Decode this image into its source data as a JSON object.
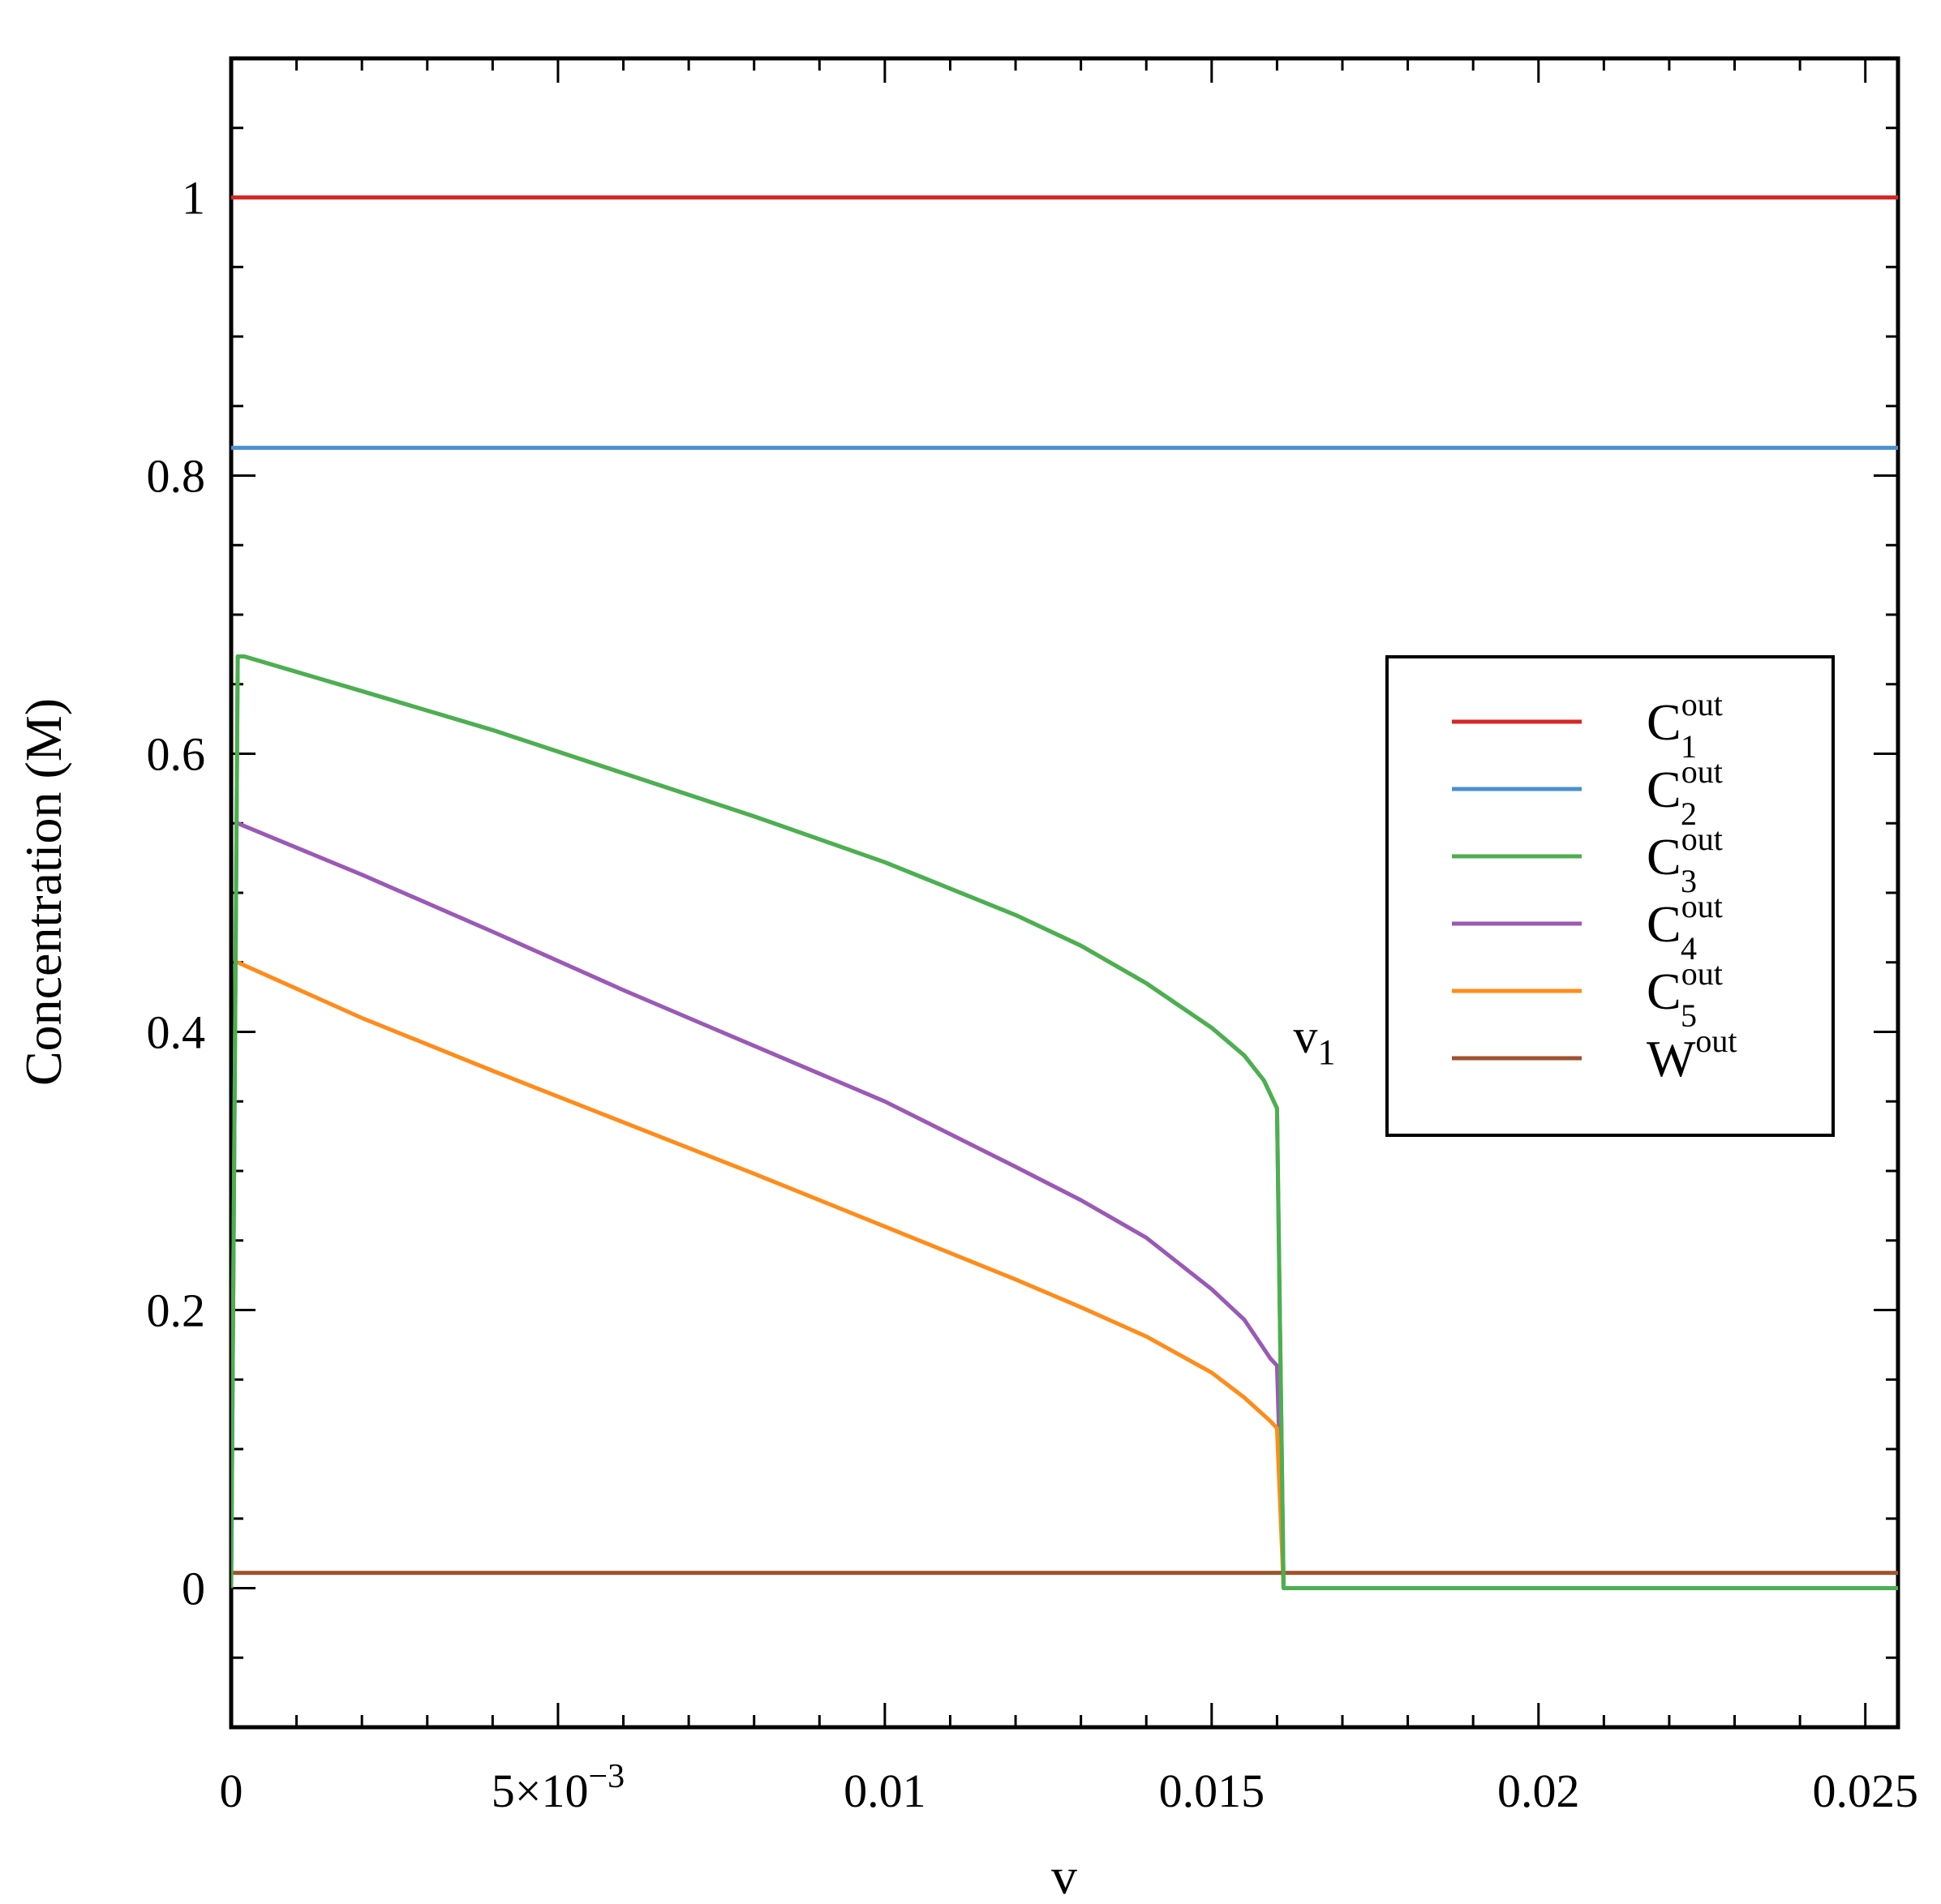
{
  "chart_data": {
    "type": "line",
    "xlabel": "v",
    "ylabel": "Concentration (M)",
    "xlim": [
      0,
      0.0255
    ],
    "ylim": [
      -0.1,
      1.1
    ],
    "grid": false,
    "legend_position": "right",
    "x_ticks": [
      {
        "value": 0,
        "label": "0"
      },
      {
        "value": 0.005,
        "label": "5×10",
        "exp": "−3"
      },
      {
        "value": 0.01,
        "label": "0.01"
      },
      {
        "value": 0.015,
        "label": "0.015"
      },
      {
        "value": 0.02,
        "label": "0.02"
      },
      {
        "value": 0.025,
        "label": "0.025"
      }
    ],
    "y_ticks": [
      {
        "value": 0,
        "label": "0"
      },
      {
        "value": 0.2,
        "label": "0.2"
      },
      {
        "value": 0.4,
        "label": "0.4"
      },
      {
        "value": 0.6,
        "label": "0.6"
      },
      {
        "value": 0.8,
        "label": "0.8"
      },
      {
        "value": 1,
        "label": "1"
      }
    ],
    "series": [
      {
        "name": "C1out",
        "base": "C",
        "sub": "1",
        "sup": "out",
        "color": "#d62728",
        "x": [
          0,
          0.0255
        ],
        "y": [
          1.0,
          1.0
        ]
      },
      {
        "name": "C2out",
        "base": "C",
        "sub": "2",
        "sup": "out",
        "color": "#4a90d0",
        "x": [
          0,
          0.0255
        ],
        "y": [
          0.82,
          0.82
        ]
      },
      {
        "name": "C3out",
        "base": "C",
        "sub": "3",
        "sup": "out",
        "color": "#4caf50",
        "x": [
          0,
          0.0001,
          0.0002,
          0.002,
          0.004,
          0.006,
          0.008,
          0.01,
          0.012,
          0.013,
          0.014,
          0.015,
          0.0155,
          0.0158,
          0.0159,
          0.016,
          0.0161,
          0.0163,
          0.0255
        ],
        "y": [
          0.0,
          0.67,
          0.67,
          0.645,
          0.617,
          0.586,
          0.555,
          0.522,
          0.484,
          0.462,
          0.435,
          0.403,
          0.383,
          0.365,
          0.355,
          0.345,
          0.0,
          0.0,
          0.0
        ]
      },
      {
        "name": "C4out",
        "base": "C",
        "sub": "4",
        "sup": "out",
        "color": "#9b59b6",
        "x": [
          0.0001,
          0.002,
          0.004,
          0.006,
          0.008,
          0.01,
          0.012,
          0.013,
          0.014,
          0.015,
          0.0155,
          0.0159,
          0.016,
          0.0161
        ],
        "y": [
          0.55,
          0.513,
          0.472,
          0.43,
          0.39,
          0.35,
          0.303,
          0.279,
          0.252,
          0.215,
          0.193,
          0.165,
          0.16,
          0.0
        ]
      },
      {
        "name": "C5out",
        "base": "C",
        "sub": "5",
        "sup": "out",
        "color": "#ff8c1a",
        "x": [
          0.0001,
          0.002,
          0.004,
          0.006,
          0.008,
          0.01,
          0.012,
          0.013,
          0.014,
          0.015,
          0.0155,
          0.0159,
          0.016,
          0.0161
        ],
        "y": [
          0.45,
          0.41,
          0.372,
          0.335,
          0.298,
          0.26,
          0.222,
          0.202,
          0.181,
          0.155,
          0.137,
          0.12,
          0.115,
          0.0
        ]
      },
      {
        "name": "Wout",
        "base": "W",
        "sub": "",
        "sup": "out",
        "color": "#a0522d",
        "x": [
          0,
          0.0255
        ],
        "y": [
          0.011,
          0.011
        ]
      }
    ],
    "annotations": [
      {
        "base": "v",
        "sub": "1",
        "x": 0.01625,
        "y": 0.385
      }
    ]
  }
}
